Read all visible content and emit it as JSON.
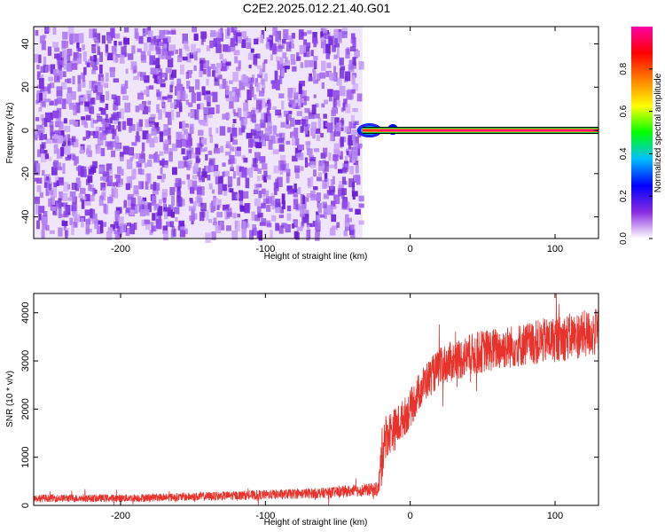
{
  "title": "C2E2.2025.012.21.40.G01",
  "chart_data": [
    {
      "type": "heatmap",
      "xlabel": "Height of straight line (km)",
      "ylabel": "Frequency (Hz)",
      "xlim": [
        -260,
        130
      ],
      "ylim": [
        -50,
        48
      ],
      "xticks": [
        -200,
        -100,
        0,
        100
      ],
      "yticks": [
        -40,
        -20,
        0,
        20,
        40
      ],
      "xtick_labels": [
        "-200",
        "-100",
        "0",
        "100"
      ],
      "ytick_labels": [
        "-40",
        "-20",
        "0",
        "20",
        "40"
      ],
      "noise_region_x": [
        -260,
        -33
      ],
      "signal_line": {
        "y": 0,
        "x_start": -33,
        "x_end": 130,
        "amplitude": 0.85
      },
      "colorbar": {
        "label": "Normalized spectral amplitude",
        "range": [
          0,
          1
        ],
        "ticks": [
          0.0,
          0.2,
          0.4,
          0.6,
          0.8
        ],
        "tick_labels": [
          "0.0",
          "0.2",
          "0.4",
          "0.6",
          "0.8"
        ],
        "colors": [
          "#ffffff",
          "#8a2be2",
          "#0000ff",
          "#00bfff",
          "#00ff00",
          "#ffff00",
          "#ff7f00",
          "#ff0000",
          "#ff00aa"
        ]
      }
    },
    {
      "type": "line",
      "xlabel": "Height of straight line (km)",
      "ylabel": "SNR (10 * v/v)",
      "xlim": [
        -260,
        130
      ],
      "ylim": [
        0,
        4400
      ],
      "xticks": [
        -200,
        -100,
        0,
        100
      ],
      "yticks": [
        0,
        1000,
        2000,
        3000,
        4000
      ],
      "xtick_labels": [
        "-200",
        "-100",
        "0",
        "100"
      ],
      "ytick_labels": [
        "0",
        "1000",
        "2000",
        "3000",
        "4000"
      ],
      "color": "#e8332c",
      "x": [
        -260,
        -200,
        -150,
        -100,
        -60,
        -30,
        -22,
        -20,
        -18,
        -15,
        -10,
        -5,
        0,
        5,
        10,
        15,
        20,
        25,
        30,
        40,
        50,
        60,
        70,
        80,
        90,
        100,
        110,
        120,
        130
      ],
      "y": [
        150,
        150,
        180,
        220,
        260,
        320,
        340,
        900,
        1400,
        1500,
        1600,
        1800,
        2000,
        2300,
        2550,
        2700,
        2850,
        2950,
        3000,
        3100,
        3200,
        3250,
        3300,
        3350,
        3400,
        3450,
        3500,
        3550,
        3600
      ],
      "noise_amplitude": [
        80,
        80,
        90,
        100,
        110,
        130,
        150,
        600,
        500,
        450,
        450,
        400,
        400,
        400,
        400,
        400,
        400,
        420,
        430,
        450,
        450,
        450,
        450,
        460,
        470,
        480,
        490,
        500,
        500
      ]
    }
  ]
}
